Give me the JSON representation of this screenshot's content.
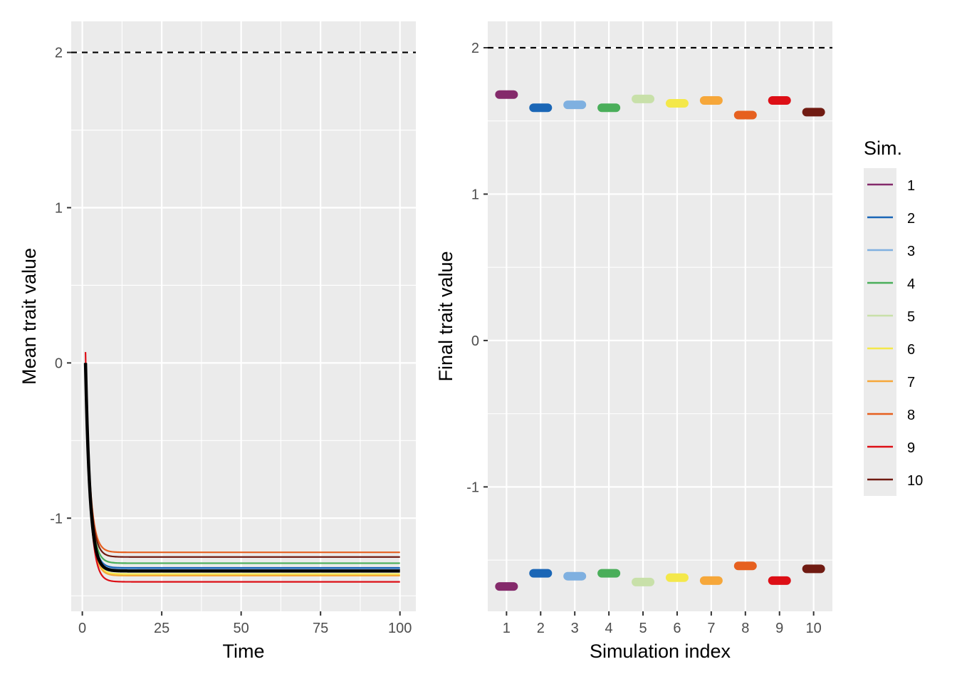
{
  "chart_data": [
    {
      "type": "line",
      "xlabel": "Time",
      "ylabel": "Mean trait value",
      "xlim": [
        -3.5,
        105
      ],
      "ylim": [
        -1.6,
        2.2
      ],
      "x_ticks": [
        0,
        25,
        50,
        75,
        100
      ],
      "x_tick_labels": [
        "0",
        "25",
        "50",
        "75",
        "100"
      ],
      "y_ticks": [
        -1,
        0,
        1,
        2
      ],
      "y_tick_labels": [
        "-1",
        "0",
        "1",
        "2"
      ],
      "reference_line": 2,
      "grid": true,
      "series": [
        {
          "name": "1",
          "color": "#842a6b",
          "start": 0.0,
          "final": -1.33
        },
        {
          "name": "2",
          "color": "#1a66b6",
          "start": 0.0,
          "final": -1.32
        },
        {
          "name": "3",
          "color": "#7fb0e0",
          "start": 0.0,
          "final": -1.33
        },
        {
          "name": "4",
          "color": "#4aae5a",
          "start": 0.0,
          "final": -1.29
        },
        {
          "name": "5",
          "color": "#c8e0a9",
          "start": 0.0,
          "final": -1.37
        },
        {
          "name": "6",
          "color": "#f4e84a",
          "start": 0.0,
          "final": -1.36
        },
        {
          "name": "7",
          "color": "#f6a73a",
          "start": 0.0,
          "final": -1.37
        },
        {
          "name": "8",
          "color": "#e6601f",
          "start": 0.0,
          "final": -1.22
        },
        {
          "name": "9",
          "color": "#dd0f16",
          "start": 0.07,
          "final": -1.41
        },
        {
          "name": "10",
          "color": "#701b12",
          "start": 0.0,
          "final": -1.25
        },
        {
          "name": "",
          "color": "#000000",
          "start": 0.0,
          "final": -1.34,
          "width": 4.5
        }
      ]
    },
    {
      "type": "scatter",
      "xlabel": "Simulation index",
      "ylabel": "Final trait value",
      "xlim": [
        0.45,
        10.55
      ],
      "ylim": [
        -1.85,
        2.18
      ],
      "x_ticks": [
        1,
        2,
        3,
        4,
        5,
        6,
        7,
        8,
        9,
        10
      ],
      "x_tick_labels": [
        "1",
        "2",
        "3",
        "4",
        "5",
        "6",
        "7",
        "8",
        "9",
        "10"
      ],
      "y_ticks": [
        -1,
        0,
        1,
        2
      ],
      "y_tick_labels": [
        "-1",
        "0",
        "1",
        "2"
      ],
      "reference_line": 2,
      "grid": true,
      "upper": [
        1.68,
        1.59,
        1.61,
        1.59,
        1.65,
        1.62,
        1.64,
        1.54,
        1.64,
        1.56
      ],
      "lower": [
        -1.68,
        -1.59,
        -1.61,
        -1.59,
        -1.65,
        -1.62,
        -1.64,
        -1.54,
        -1.64,
        -1.56
      ]
    }
  ],
  "legend": {
    "title": "Sim.",
    "placement": "right",
    "items": [
      {
        "label": "1",
        "color": "#842a6b"
      },
      {
        "label": "2",
        "color": "#1a66b6"
      },
      {
        "label": "3",
        "color": "#7fb0e0"
      },
      {
        "label": "4",
        "color": "#4aae5a"
      },
      {
        "label": "5",
        "color": "#c8e0a9"
      },
      {
        "label": "6",
        "color": "#f4e84a"
      },
      {
        "label": "7",
        "color": "#f6a73a"
      },
      {
        "label": "8",
        "color": "#e6601f"
      },
      {
        "label": "9",
        "color": "#dd0f16"
      },
      {
        "label": "10",
        "color": "#701b12"
      }
    ]
  },
  "colors": {
    "panel_background": "#ebebeb",
    "grid": "#ffffff",
    "tick_text": "#4d4d4d",
    "reference_line": "#000000"
  }
}
